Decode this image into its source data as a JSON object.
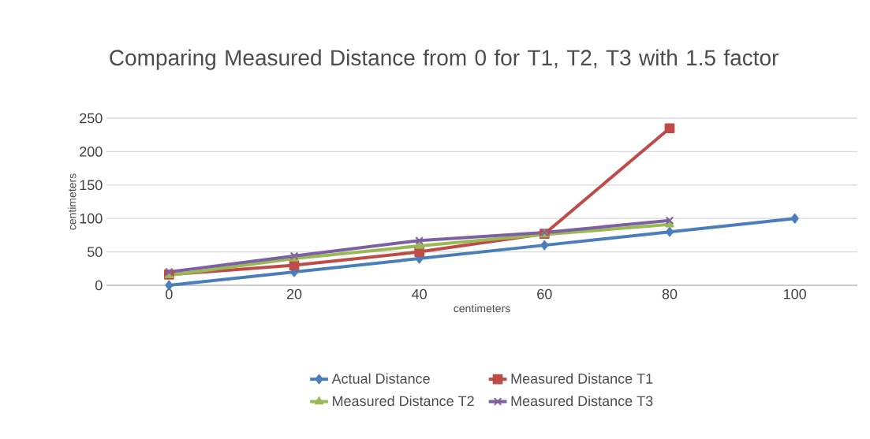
{
  "chart_data": {
    "type": "line",
    "title": "Comparing Measured Distance from 0 for T1, T2, T3 with 1.5 factor",
    "xlabel": "centimeters",
    "ylabel": "centimeters",
    "categories": [
      "0",
      "20",
      "40",
      "60",
      "80",
      "100"
    ],
    "series": [
      {
        "name": "Actual Distance",
        "color": "#4a7ebb",
        "marker": "diamond",
        "values": [
          0,
          20,
          40,
          60,
          80,
          100
        ]
      },
      {
        "name": "Measured Distance T1",
        "color": "#be4b48",
        "marker": "square",
        "values": [
          16,
          30,
          50,
          77,
          235,
          null
        ]
      },
      {
        "name": "Measured Distance T2",
        "color": "#98b954",
        "marker": "triangle",
        "values": [
          15,
          40,
          59,
          76,
          91,
          null
        ]
      },
      {
        "name": "Measured Distance T3",
        "color": "#7d60a0",
        "marker": "cross",
        "values": [
          20,
          44,
          67,
          79,
          97,
          null
        ]
      }
    ],
    "ylim": [
      0,
      250
    ],
    "yticks": [
      0,
      50,
      100,
      150,
      200,
      250
    ],
    "grid": "y",
    "legend": "bottom",
    "line_style": "solid"
  }
}
